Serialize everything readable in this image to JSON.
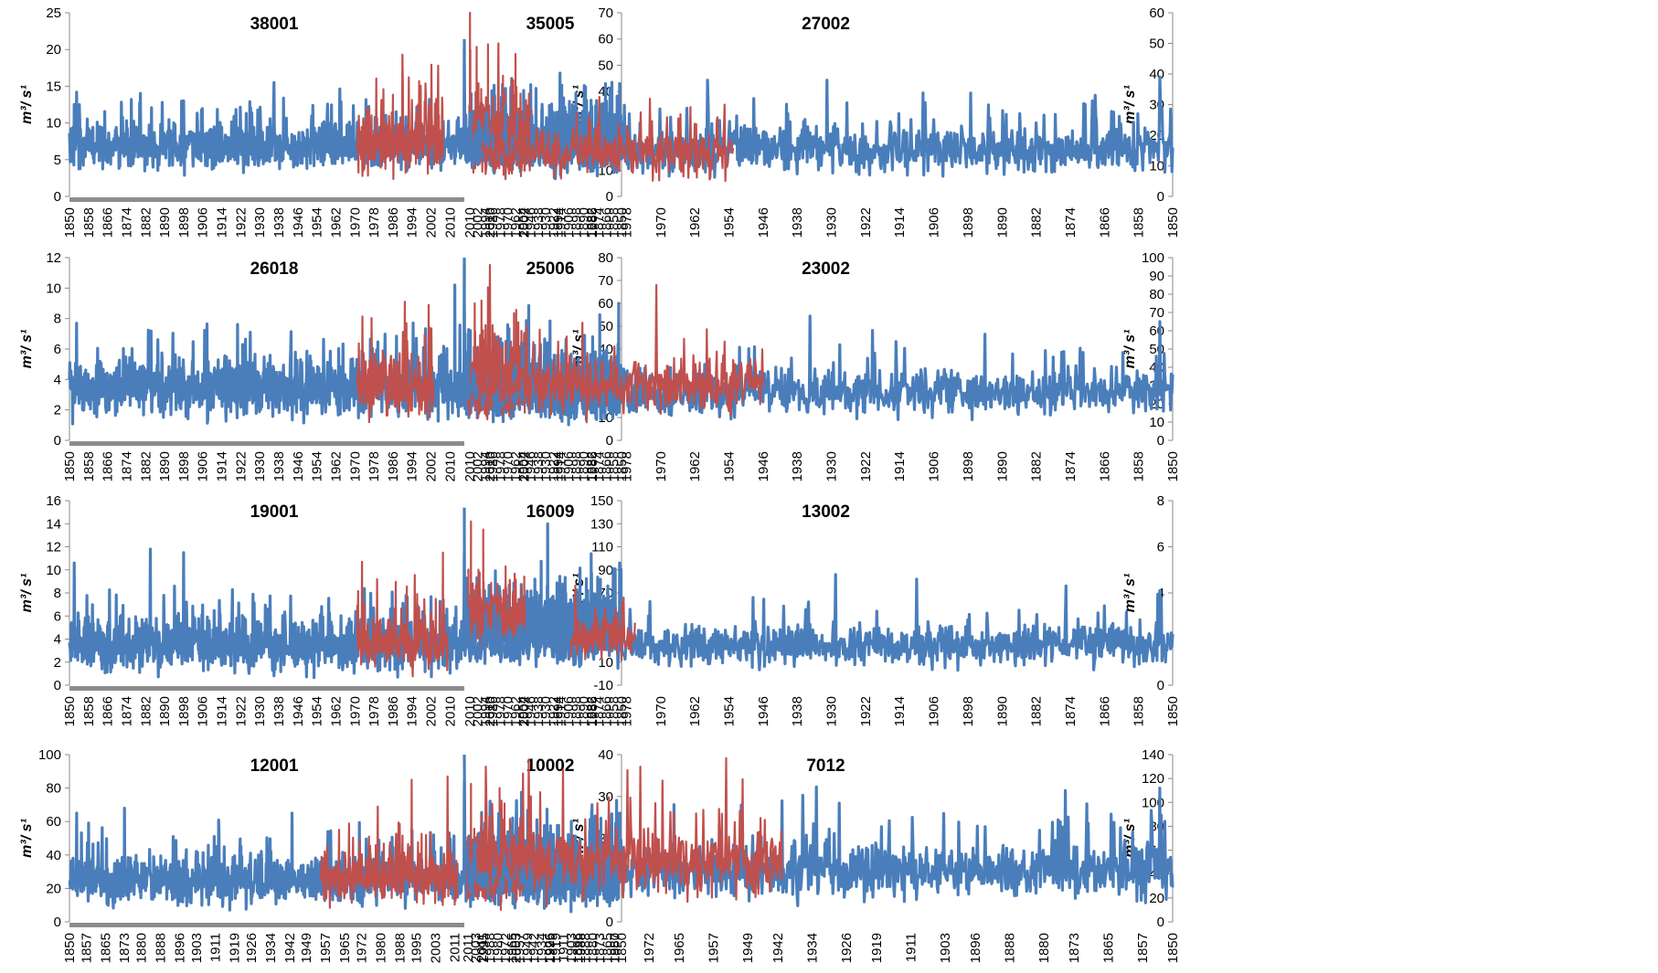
{
  "colors": {
    "observed": "#4a7ebb",
    "overlay": "#c0504d",
    "baseline": "#8c8c8c"
  },
  "y_unit_label": "m³/ s¹",
  "chart_data": [
    {
      "type": "line",
      "title": "38001",
      "ylabel": "m³/ s¹",
      "ylim": [
        0,
        25
      ],
      "yticks": [
        0,
        5,
        10,
        15,
        20,
        25
      ],
      "x_range": [
        1850,
        2016
      ],
      "xticks": [
        1850,
        1858,
        1866,
        1874,
        1882,
        1890,
        1898,
        1906,
        1914,
        1922,
        1930,
        1938,
        1946,
        1954,
        1962,
        1970,
        1978,
        1986,
        1994,
        2002,
        2010
      ],
      "series": [
        {
          "color": "observed",
          "x_range": [
            1850,
            2016
          ],
          "mean": 6.8,
          "spread": 1.8,
          "peaks": [
            [
              1853,
              14.2
            ],
            [
              1876,
              13.2
            ],
            [
              1889,
              12.8
            ],
            [
              1936,
              15.5
            ],
            [
              2016,
              20.3
            ]
          ]
        },
        {
          "color": "overlay",
          "x_range": [
            1971,
            2007
          ],
          "mean": 7.2,
          "spread": 2.6,
          "peaks": [
            [
              1990,
              19.3
            ],
            [
              1997,
              15.7
            ],
            [
              2005,
              17.8
            ]
          ]
        }
      ]
    },
    {
      "type": "line",
      "title": "35005",
      "ylabel": "m³/ s¹",
      "ylim": [
        0,
        70
      ],
      "yticks": [
        0,
        10,
        20,
        30,
        40,
        50,
        60,
        70
      ],
      "x_range": [
        1850,
        2016
      ],
      "xticks": [
        1850,
        1858,
        1866,
        1874,
        1882,
        1890,
        1898,
        1906,
        1914,
        1922,
        1930,
        1938,
        1946,
        1954,
        1962,
        1970,
        1978,
        1986,
        1994,
        2002,
        2010
      ],
      "series": [
        {
          "color": "observed",
          "x_range": [
            1850,
            2016
          ],
          "mean": 21,
          "spread": 5.5,
          "peaks": [
            [
              1852,
              43
            ],
            [
              1915,
              47
            ],
            [
              1966,
              45
            ],
            [
              2016,
              60
            ]
          ]
        },
        {
          "color": "overlay",
          "x_range": [
            1945,
            2011
          ],
          "mean": 22,
          "spread": 7,
          "peaks": [
            [
              1991,
              58
            ],
            [
              2003,
              57
            ],
            [
              2010,
              70
            ]
          ]
        }
      ]
    },
    {
      "type": "line",
      "title": "27002",
      "ylabel": "m³/ s¹",
      "ylim": [
        0,
        60
      ],
      "yticks": [
        0,
        10,
        20,
        30,
        40,
        50,
        60
      ],
      "x_range": [
        1850,
        2016
      ],
      "xticks": [
        1850,
        1858,
        1866,
        1874,
        1882,
        1890,
        1898,
        1906,
        1914,
        1922,
        1930,
        1938,
        1946,
        1954,
        1962,
        1970,
        1978,
        1986,
        1994,
        2002,
        2010
      ],
      "series": [
        {
          "color": "observed",
          "x_range": [
            1850,
            2016
          ],
          "mean": 15,
          "spread": 4.5,
          "peaks": [
            [
              1853,
              39
            ],
            [
              1931,
              38
            ],
            [
              1959,
              38
            ],
            [
              2016,
              43
            ]
          ]
        },
        {
          "color": "overlay",
          "x_range": [
            1953,
            2012
          ],
          "mean": 14,
          "spread": 5,
          "peaks": [
            [
              1955,
              30
            ],
            [
              2008,
              50
            ]
          ]
        }
      ]
    },
    {
      "type": "line",
      "title": "26018",
      "ylabel": "m³/ s¹",
      "ylim": [
        0,
        12
      ],
      "yticks": [
        0,
        2,
        4,
        6,
        8,
        10,
        12
      ],
      "x_range": [
        1850,
        2016
      ],
      "xticks": [
        1850,
        1858,
        1866,
        1874,
        1882,
        1890,
        1898,
        1906,
        1914,
        1922,
        1930,
        1938,
        1946,
        1954,
        1962,
        1970,
        1978,
        1986,
        1994,
        2002,
        2010
      ],
      "series": [
        {
          "color": "observed",
          "x_range": [
            1850,
            2016
          ],
          "mean": 3.3,
          "spread": 1.1,
          "peaks": [
            [
              1853,
              7.7
            ],
            [
              1926,
              7.1
            ],
            [
              2012,
              10.2
            ],
            [
              2016,
              11.5
            ]
          ]
        },
        {
          "color": "overlay",
          "x_range": [
            1971,
            2003
          ],
          "mean": 3.5,
          "spread": 1.3,
          "peaks": [
            [
              1991,
              9.1
            ],
            [
              2001,
              8.9
            ]
          ]
        }
      ]
    },
    {
      "type": "line",
      "title": "25006",
      "ylabel": "m³/ s¹",
      "ylim": [
        0,
        80
      ],
      "yticks": [
        0,
        10,
        20,
        30,
        40,
        50,
        60,
        70,
        80
      ],
      "x_range": [
        1850,
        2016
      ],
      "xticks": [
        1850,
        1858,
        1866,
        1874,
        1882,
        1890,
        1898,
        1906,
        1914,
        1922,
        1930,
        1938,
        1946,
        1954,
        1962,
        1970,
        1978,
        1986,
        1994,
        2002,
        2010
      ],
      "series": [
        {
          "color": "observed",
          "x_range": [
            1850,
            2016
          ],
          "mean": 22,
          "spread": 7,
          "peaks": [
            [
              1853,
              60
            ],
            [
              1873,
              55
            ],
            [
              1948,
              59
            ],
            [
              2016,
              80
            ]
          ]
        },
        {
          "color": "overlay",
          "x_range": [
            1952,
            2012
          ],
          "mean": 25,
          "spread": 8,
          "peaks": [
            [
              1991,
              67
            ],
            [
              2005,
              60
            ]
          ]
        }
      ]
    },
    {
      "type": "line",
      "title": "23002",
      "ylabel": "m³/ s¹",
      "ylim": [
        0,
        100
      ],
      "yticks": [
        0,
        10,
        20,
        30,
        40,
        50,
        60,
        70,
        80,
        90,
        100
      ],
      "x_range": [
        1850,
        2016
      ],
      "xticks": [
        1850,
        1858,
        1866,
        1874,
        1882,
        1890,
        1898,
        1906,
        1914,
        1922,
        1930,
        1938,
        1946,
        1954,
        1962,
        1970,
        1978,
        1986,
        1994,
        2002,
        2010
      ],
      "series": [
        {
          "color": "observed",
          "x_range": [
            1850,
            2016
          ],
          "mean": 26,
          "spread": 7,
          "peaks": [
            [
              1853,
              65
            ],
            [
              1935,
              68
            ],
            [
              2016,
              74
            ]
          ]
        },
        {
          "color": "overlay",
          "x_range": [
            1946,
            2013
          ],
          "mean": 30,
          "spread": 9,
          "peaks": [
            [
              1971,
              85
            ],
            [
              2010,
              96
            ]
          ]
        }
      ]
    },
    {
      "type": "line",
      "title": "19001",
      "ylabel": "m³/ s¹",
      "ylim": [
        0,
        16
      ],
      "yticks": [
        0,
        2,
        4,
        6,
        8,
        10,
        12,
        14,
        16
      ],
      "x_range": [
        1850,
        2016
      ],
      "xticks": [
        1850,
        1858,
        1866,
        1874,
        1882,
        1890,
        1898,
        1906,
        1914,
        1922,
        1930,
        1938,
        1946,
        1954,
        1962,
        1970,
        1978,
        1986,
        1994,
        2002,
        2010
      ],
      "series": [
        {
          "color": "observed",
          "x_range": [
            1850,
            2016
          ],
          "mean": 3.4,
          "spread": 1.3,
          "peaks": [
            [
              1852,
              10.6
            ],
            [
              1884,
              11.8
            ],
            [
              1898,
              11.5
            ],
            [
              2016,
              11.6
            ]
          ]
        },
        {
          "color": "overlay",
          "x_range": [
            1971,
            2009
          ],
          "mean": 3.8,
          "spread": 1.6,
          "peaks": [
            [
              1973,
              10.7
            ],
            [
              2007,
              11.5
            ]
          ]
        }
      ]
    },
    {
      "type": "line",
      "title": "16009",
      "ylabel": "m³/ s¹",
      "ylim": [
        -10,
        150
      ],
      "yticks": [
        -10,
        10,
        30,
        50,
        70,
        90,
        110,
        130,
        150
      ],
      "x_range": [
        1850,
        2016
      ],
      "xticks": [
        1850,
        1858,
        1866,
        1874,
        1882,
        1890,
        1898,
        1906,
        1914,
        1922,
        1930,
        1938,
        1946,
        1954,
        1962,
        1970,
        1978,
        1986,
        1994,
        2002,
        2010
      ],
      "series": [
        {
          "color": "observed",
          "x_range": [
            1850,
            2016
          ],
          "mean": 44,
          "spread": 12,
          "peaks": [
            [
              1852,
              96
            ],
            [
              1882,
              104
            ],
            [
              1928,
              130
            ],
            [
              2016,
              144
            ]
          ]
        },
        {
          "color": "overlay",
          "x_range": [
            1952,
            2012
          ],
          "mean": 45,
          "spread": 14,
          "peaks": [
            [
              1996,
              125
            ],
            [
              2009,
              132
            ]
          ]
        }
      ]
    },
    {
      "type": "line",
      "title": "13002",
      "ylabel": "m³/ s¹",
      "ylim": [
        0,
        8
      ],
      "yticks": [
        0,
        2,
        4,
        6,
        8
      ],
      "x_range": [
        1850,
        2016
      ],
      "xticks": [
        1850,
        1858,
        1866,
        1874,
        1882,
        1890,
        1898,
        1906,
        1914,
        1922,
        1930,
        1938,
        1946,
        1954,
        1962,
        1970,
        1978,
        1986,
        1994,
        2002,
        2010
      ],
      "series": [
        {
          "color": "observed",
          "x_range": [
            1850,
            2016
          ],
          "mean": 1.7,
          "spread": 0.5,
          "peaks": [
            [
              1853,
              4.1
            ],
            [
              1875,
              4.3
            ],
            [
              1910,
              4.6
            ],
            [
              1929,
              4.8
            ],
            [
              2016,
              5.5
            ]
          ]
        },
        {
          "color": "overlay",
          "x_range": [
            1976,
            1991
          ],
          "mean": 2.0,
          "spread": 0.6,
          "peaks": [
            [
              1979,
              3.6
            ]
          ]
        }
      ]
    },
    {
      "type": "line",
      "title": "12001",
      "ylabel": "m³/ s¹",
      "ylim": [
        0,
        100
      ],
      "yticks": [
        0,
        20,
        40,
        60,
        80,
        100
      ],
      "x_range": [
        1850,
        2015
      ],
      "xticks": [
        1850,
        1857,
        1865,
        1873,
        1880,
        1888,
        1896,
        1903,
        1911,
        1919,
        1926,
        1934,
        1942,
        1949,
        1957,
        1965,
        1972,
        1980,
        1988,
        1995,
        2003,
        2011
      ],
      "series": [
        {
          "color": "observed",
          "x_range": [
            1850,
            2015
          ],
          "mean": 25,
          "spread": 8,
          "peaks": [
            [
              1853,
              65
            ],
            [
              1873,
              68
            ],
            [
              1943,
              65
            ],
            [
              2015,
              79
            ]
          ]
        },
        {
          "color": "overlay",
          "x_range": [
            1955,
            2012
          ],
          "mean": 26,
          "spread": 9,
          "peaks": [
            [
              1993,
              85
            ],
            [
              2008,
              87
            ]
          ]
        }
      ]
    },
    {
      "type": "line",
      "title": "10002",
      "ylabel": "m³/ s¹",
      "ylim": [
        0,
        40
      ],
      "yticks": [
        0,
        10,
        20,
        30,
        40
      ],
      "x_range": [
        1850,
        2015
      ],
      "xticks": [
        1850,
        1857,
        1865,
        1873,
        1880,
        1888,
        1896,
        1903,
        1911,
        1919,
        1926,
        1934,
        1942,
        1949,
        1957,
        1965,
        1972,
        1980,
        1988,
        1995,
        2003,
        2011
      ],
      "series": [
        {
          "color": "observed",
          "x_range": [
            1850,
            2015
          ],
          "mean": 11,
          "spread": 3.8,
          "peaks": [
            [
              1852,
              26
            ],
            [
              1881,
              28
            ],
            [
              1955,
              31
            ],
            [
              2015,
              34
            ]
          ]
        },
        {
          "color": "overlay",
          "x_range": [
            1953,
            2012
          ],
          "mean": 12,
          "spread": 4.2,
          "peaks": [
            [
              1978,
              32
            ],
            [
              2008,
              33
            ]
          ]
        }
      ]
    },
    {
      "type": "line",
      "title": "7012",
      "ylabel": "m³/ s¹",
      "ylim": [
        0,
        140
      ],
      "yticks": [
        0,
        20,
        40,
        60,
        80,
        100,
        120,
        140
      ],
      "x_range": [
        1850,
        2015
      ],
      "xticks": [
        1850,
        1857,
        1865,
        1873,
        1880,
        1888,
        1896,
        1903,
        1911,
        1919,
        1926,
        1934,
        1942,
        1949,
        1957,
        1965,
        1972,
        1980,
        1988,
        1995,
        2003,
        2011
      ],
      "series": [
        {
          "color": "observed",
          "x_range": [
            1850,
            2015
          ],
          "mean": 42,
          "spread": 14,
          "peaks": [
            [
              1853,
              112
            ],
            [
              1875,
              110
            ],
            [
              1933,
              113
            ],
            [
              2015,
              140
            ]
          ]
        },
        {
          "color": "overlay",
          "x_range": [
            1941,
            2012
          ],
          "mean": 50,
          "spread": 18,
          "peaks": [
            [
              1954,
              137
            ],
            [
              1974,
              130
            ],
            [
              2000,
              136
            ],
            [
              2010,
              130
            ]
          ]
        }
      ]
    }
  ]
}
